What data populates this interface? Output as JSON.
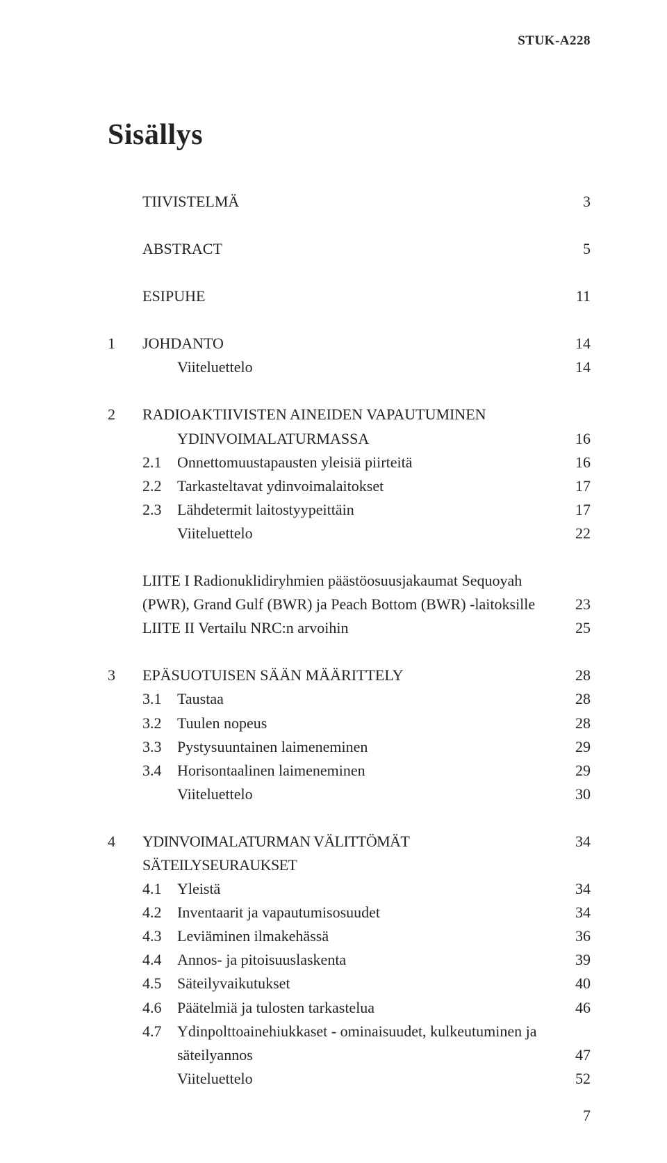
{
  "doc_header": "STUK-A228",
  "title": "Sisällys",
  "page_number": "7",
  "toc": {
    "section0": [
      {
        "num": "",
        "label": "TIIVISTELMÄ",
        "page": "3"
      }
    ],
    "section1": [
      {
        "num": "",
        "label": "ABSTRACT",
        "page": "5"
      }
    ],
    "section2": [
      {
        "num": "",
        "label": "ESIPUHE",
        "page": "11"
      }
    ],
    "section3": [
      {
        "num": "1",
        "label": "JOHDANTO",
        "page": "14"
      },
      {
        "num": "",
        "label": "Viiteluettelo",
        "page": "14",
        "indent": true
      }
    ],
    "section4": [
      {
        "num": "2",
        "label": "RADIOAKTIIVISTEN AINEIDEN VAPAUTUMINEN",
        "page": ""
      },
      {
        "num": "",
        "label": "YDINVOIMALATURMASSA",
        "page": "16",
        "indent": true,
        "cont": true
      },
      {
        "num": "2.1",
        "label": "Onnettomuustapausten yleisiä piirteitä",
        "page": "16",
        "indent": true
      },
      {
        "num": "2.2",
        "label": "Tarkasteltavat ydinvoimalaitokset",
        "page": "17",
        "indent": true
      },
      {
        "num": "2.3",
        "label": "Lähdetermit laitostyypeittäin",
        "page": "17",
        "indent": true
      },
      {
        "num": "",
        "label": "Viiteluettelo",
        "page": "22",
        "indent": true
      }
    ],
    "liite": [
      {
        "line1": "LIITE I   Radionuklidiryhmien päästöosuusjakaumat Sequoyah",
        "line2": "(PWR), Grand Gulf (BWR) ja Peach Bottom (BWR) -laitoksille",
        "page": "23"
      },
      {
        "line1": "LIITE II  Vertailu NRC:n arvoihin",
        "line2": "",
        "page": "25"
      }
    ],
    "section5": [
      {
        "num": "3",
        "label": "EPÄSUOTUISEN SÄÄN MÄÄRITTELY",
        "page": "28"
      },
      {
        "num": "3.1",
        "label": "Taustaa",
        "page": "28",
        "indent": true
      },
      {
        "num": "3.2",
        "label": "Tuulen nopeus",
        "page": "28",
        "indent": true
      },
      {
        "num": "3.3",
        "label": "Pystysuuntainen laimeneminen",
        "page": "29",
        "indent": true
      },
      {
        "num": "3.4",
        "label": "Horisontaalinen laimeneminen",
        "page": "29",
        "indent": true
      },
      {
        "num": "",
        "label": "Viiteluettelo",
        "page": "30",
        "indent": true
      }
    ],
    "section6": [
      {
        "num": "4",
        "label": "YDINVOIMALATURMAN VÄLITTÖMÄT SÄTEILYSEURAUKSET",
        "page": "34"
      },
      {
        "num": "4.1",
        "label": "Yleistä",
        "page": "34",
        "indent": true
      },
      {
        "num": "4.2",
        "label": "Inventaarit ja vapautumisosuudet",
        "page": "34",
        "indent": true
      },
      {
        "num": "4.3",
        "label": "Leviäminen ilmakehässä",
        "page": "36",
        "indent": true
      },
      {
        "num": "4.4",
        "label": "Annos- ja pitoisuuslaskenta",
        "page": "39",
        "indent": true
      },
      {
        "num": "4.5",
        "label": "Säteilyvaikutukset",
        "page": "40",
        "indent": true
      },
      {
        "num": "4.6",
        "label": "Päätelmiä ja tulosten tarkastelua",
        "page": "46",
        "indent": true
      },
      {
        "num": "4.7",
        "label": "Ydinpolttoainehiukkaset - ominaisuudet, kulkeutuminen ja",
        "page": "",
        "indent": true
      },
      {
        "num": "",
        "label": "säteilyannos",
        "page": "47",
        "indent": true,
        "cont": true
      },
      {
        "num": "",
        "label": "Viiteluettelo",
        "page": "52",
        "indent": true
      }
    ]
  }
}
